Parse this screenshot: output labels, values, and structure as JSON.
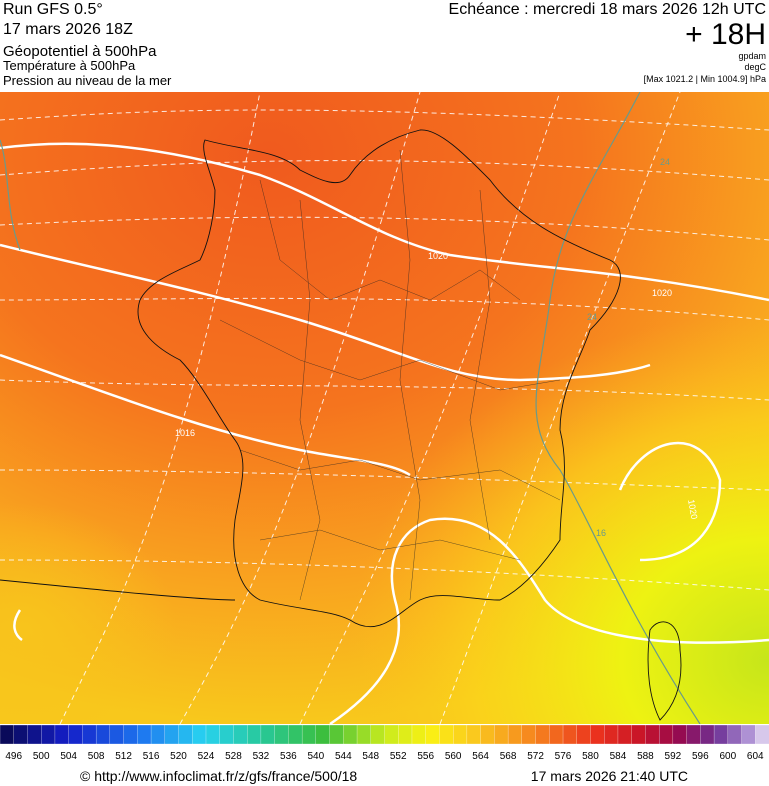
{
  "header": {
    "run": "Run GFS 0.5°",
    "date": "17 mars 2026 18Z",
    "echeance": "Echéance : mercredi 18 mars 2026 12h UTC",
    "lead": "+ 18H",
    "layers": [
      "Géopotentiel à 500hPa",
      "Température à 500hPa",
      "Pression au niveau de la mer"
    ],
    "units": [
      "gpdam",
      "degC"
    ],
    "range": "[Max 1021.2 | Min 1004.9] hPa"
  },
  "map": {
    "contour_labels": [
      "1020",
      "1020",
      "1016",
      "1020",
      "24",
      "24",
      "16"
    ]
  },
  "legend": {
    "labels": [
      496,
      500,
      504,
      508,
      512,
      516,
      520,
      524,
      528,
      532,
      536,
      540,
      544,
      548,
      552,
      556,
      560,
      564,
      568,
      572,
      576,
      580,
      584,
      588,
      592,
      596,
      600,
      604
    ]
  },
  "footer": {
    "source": "© http://www.infoclimat.fr/z/gfs/france/500/18",
    "generated": "17 mars 2026 21:40 UTC"
  }
}
